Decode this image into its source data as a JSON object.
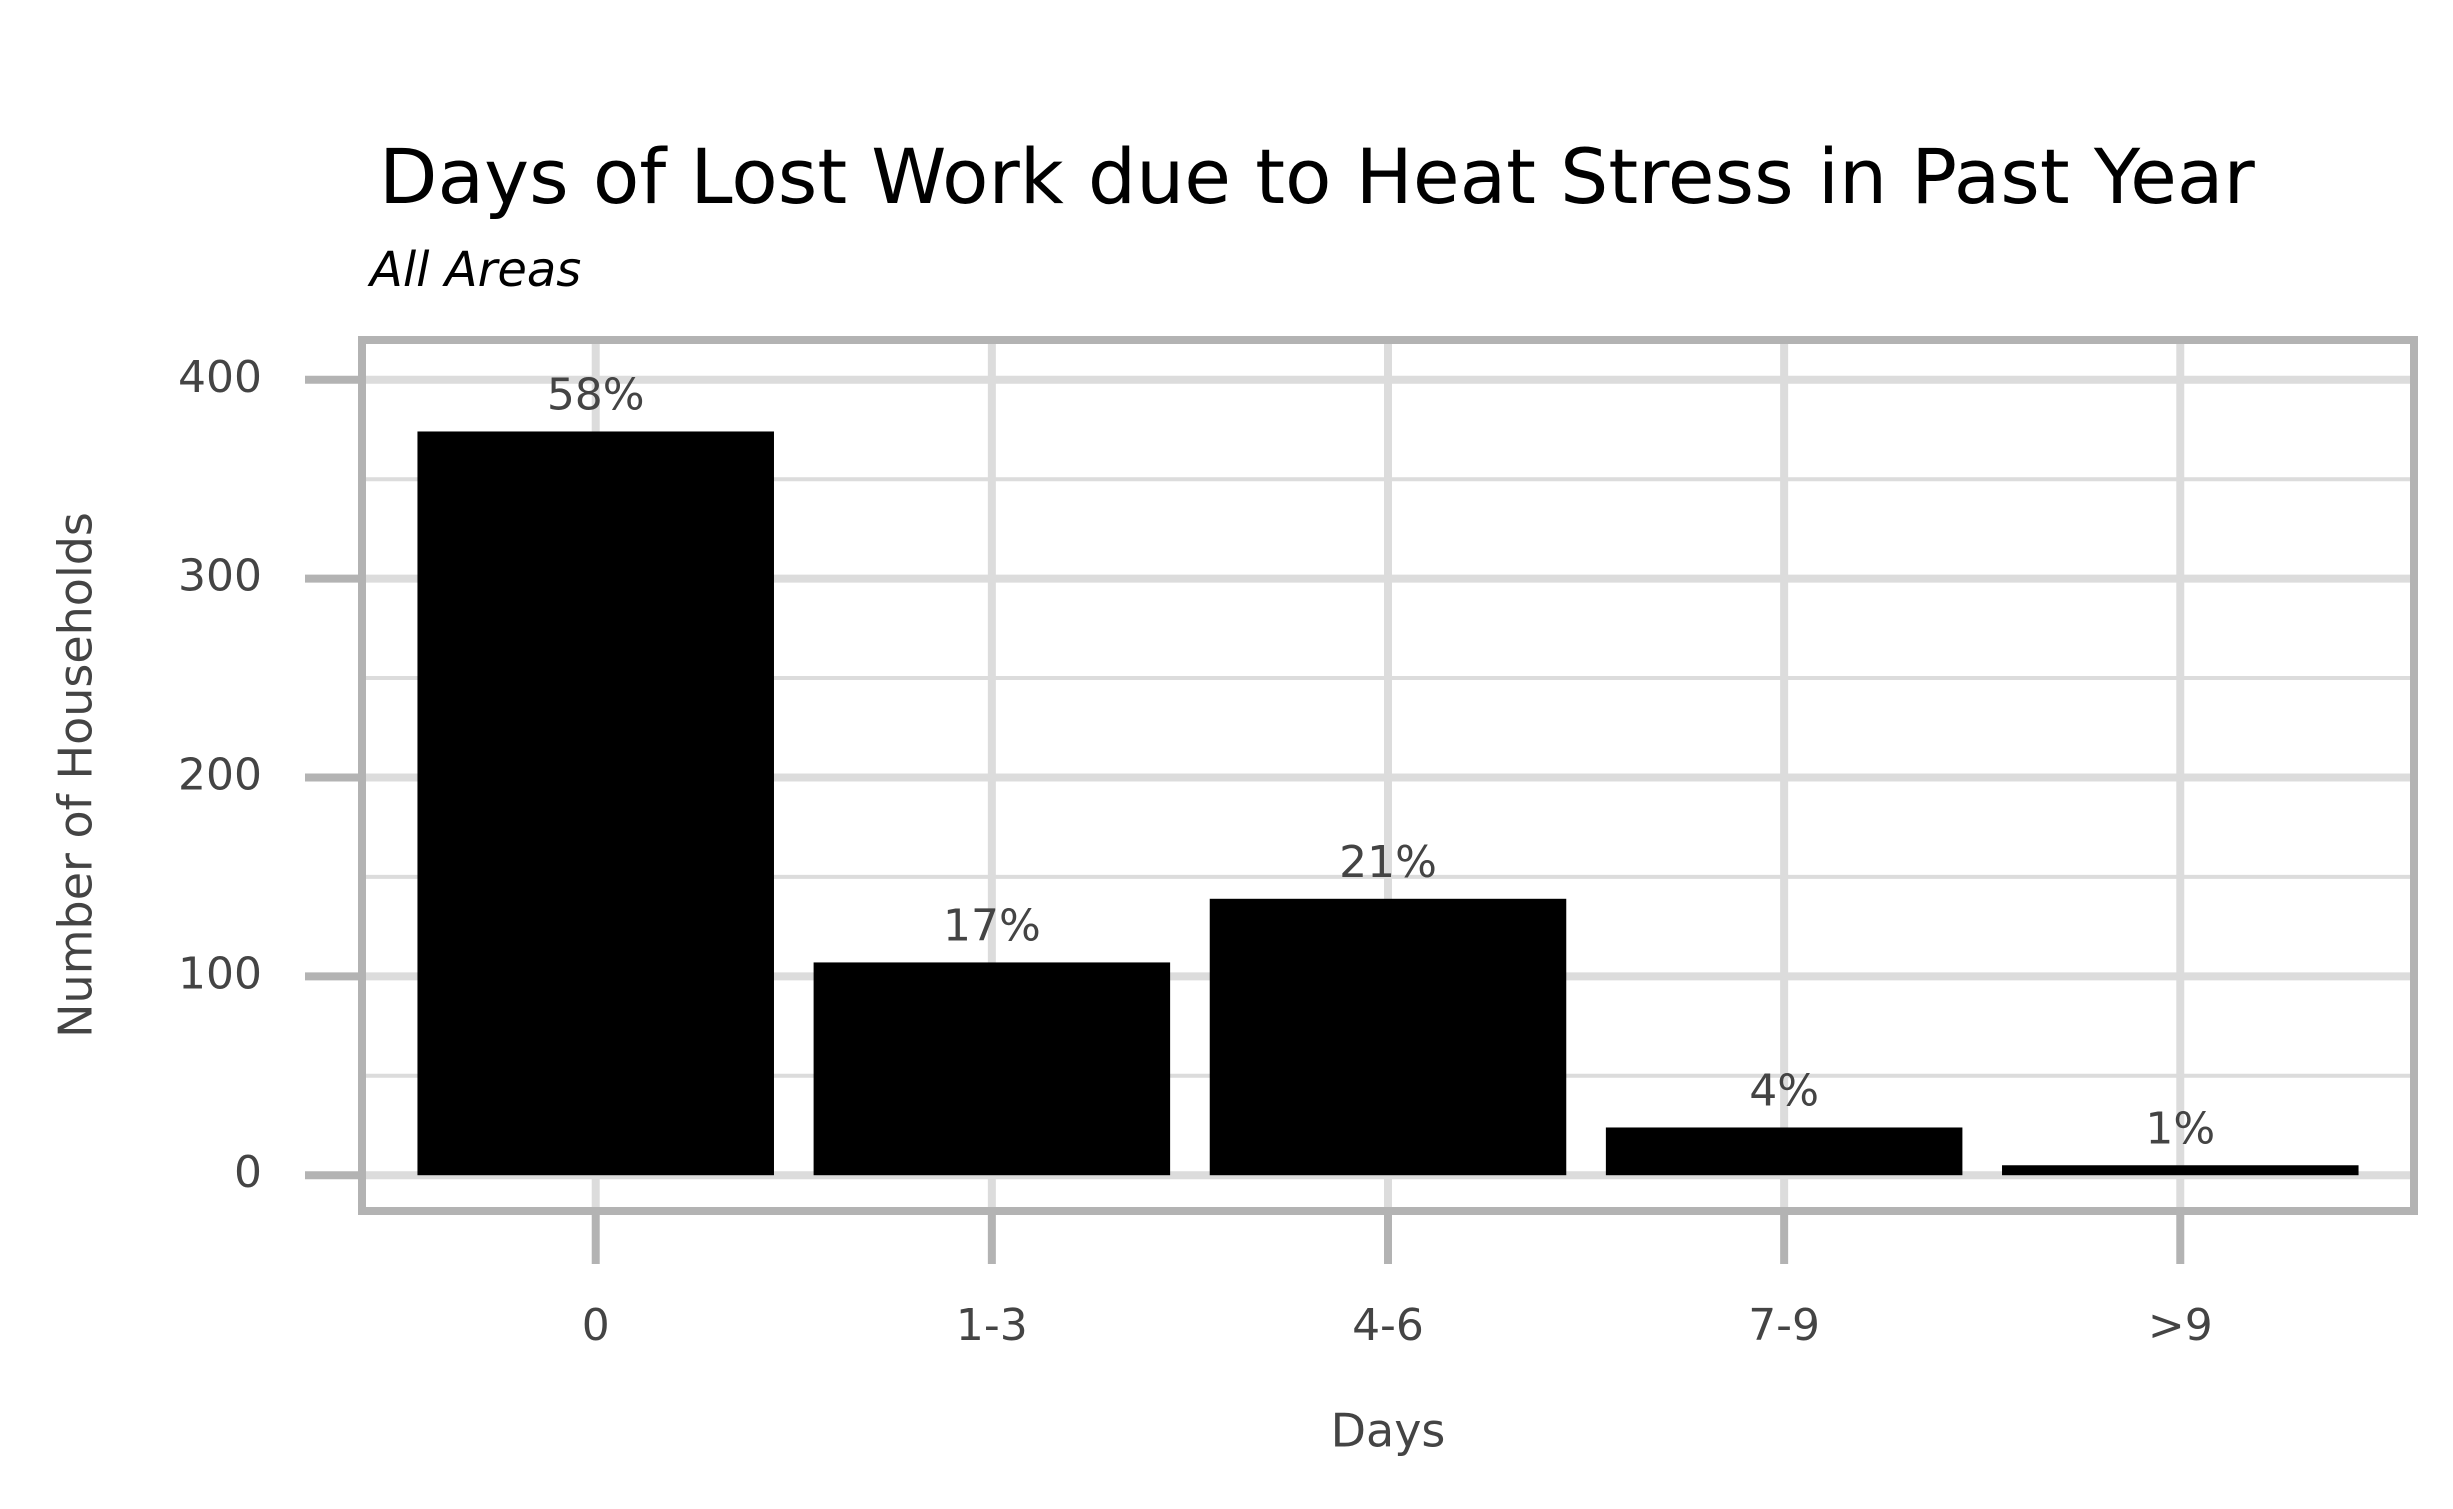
{
  "chart_data": {
    "type": "bar",
    "title": "Days of Lost Work due to Heat Stress in Past Year",
    "subtitle": "All Areas",
    "x_label": "Days",
    "y_label": "Number of Households",
    "categories": [
      "0",
      "1-3",
      "4-6",
      "7-9",
      ">9"
    ],
    "values": [
      374,
      107,
      139,
      24,
      5
    ],
    "percent_labels": [
      "58%",
      "17%",
      "21%",
      "4%",
      "1%"
    ],
    "color": "#000000",
    "ylim": [
      -18,
      420
    ],
    "yticks": [
      0,
      100,
      200,
      300,
      400
    ],
    "minor_grid": [
      50,
      150,
      250,
      350
    ],
    "grid": true
  }
}
